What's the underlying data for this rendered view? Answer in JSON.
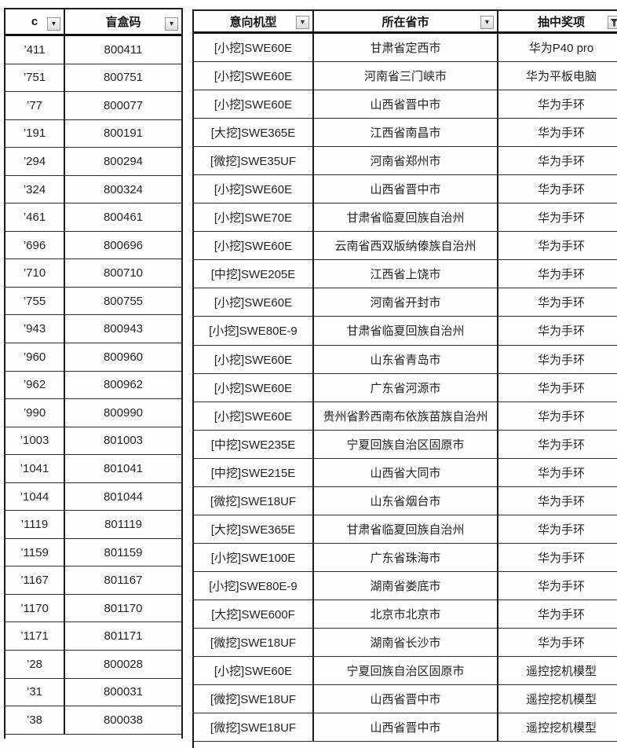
{
  "table": {
    "headers": [
      {
        "label": "c",
        "filter": "dropdown"
      },
      {
        "label": "盲盒码",
        "filter": "dropdown"
      },
      {
        "label": "意向机型",
        "filter": "dropdown"
      },
      {
        "label": "所在省市",
        "filter": "dropdown"
      },
      {
        "label": "抽中奖项",
        "filter": "funnel"
      }
    ],
    "rows": [
      [
        "’411",
        "800411",
        "[小挖]SWE60E",
        "甘肃省定西市",
        "华为P40 pro"
      ],
      [
        "’751",
        "800751",
        "[小挖]SWE60E",
        "河南省三门峡市",
        "华为平板电脑"
      ],
      [
        "’77",
        "800077",
        "[小挖]SWE60E",
        "山西省晋中市",
        "华为手环"
      ],
      [
        "’191",
        "800191",
        "[大挖]SWE365E",
        "江西省南昌市",
        "华为手环"
      ],
      [
        "’294",
        "800294",
        "[微挖]SWE35UF",
        "河南省郑州市",
        "华为手环"
      ],
      [
        "’324",
        "800324",
        "[小挖]SWE60E",
        "山西省晋中市",
        "华为手环"
      ],
      [
        "’461",
        "800461",
        "[小挖]SWE70E",
        "甘肃省临夏回族自治州",
        "华为手环"
      ],
      [
        "’696",
        "800696",
        "[小挖]SWE60E",
        "云南省西双版纳傣族自治州",
        "华为手环"
      ],
      [
        "’710",
        "800710",
        "[中挖]SWE205E",
        "江西省上饶市",
        "华为手环"
      ],
      [
        "’755",
        "800755",
        "[小挖]SWE60E",
        "河南省开封市",
        "华为手环"
      ],
      [
        "’943",
        "800943",
        "[小挖]SWE80E-9",
        "甘肃省临夏回族自治州",
        "华为手环"
      ],
      [
        "’960",
        "800960",
        "[小挖]SWE60E",
        "山东省青岛市",
        "华为手环"
      ],
      [
        "’962",
        "800962",
        "[小挖]SWE60E",
        "广东省河源市",
        "华为手环"
      ],
      [
        "’990",
        "800990",
        "[小挖]SWE60E",
        "贵州省黔西南布依族苗族自治州",
        "华为手环"
      ],
      [
        "’1003",
        "801003",
        "[中挖]SWE235E",
        "宁夏回族自治区固原市",
        "华为手环"
      ],
      [
        "’1041",
        "801041",
        "[中挖]SWE215E",
        "山西省大同市",
        "华为手环"
      ],
      [
        "’1044",
        "801044",
        "[微挖]SWE18UF",
        "山东省烟台市",
        "华为手环"
      ],
      [
        "’1119",
        "801119",
        "[大挖]SWE365E",
        "甘肃省临夏回族自治州",
        "华为手环"
      ],
      [
        "’1159",
        "801159",
        "[小挖]SWE100E",
        "广东省珠海市",
        "华为手环"
      ],
      [
        "’1167",
        "801167",
        "[小挖]SWE80E-9",
        "湖南省娄底市",
        "华为手环"
      ],
      [
        "’1170",
        "801170",
        "[大挖]SWE600F",
        "北京市北京市",
        "华为手环"
      ],
      [
        "’1171",
        "801171",
        "[微挖]SWE18UF",
        "湖南省长沙市",
        "华为手环"
      ],
      [
        "’28",
        "800028",
        "[小挖]SWE60E",
        "宁夏回族自治区固原市",
        "遥控挖机模型"
      ],
      [
        "’31",
        "800031",
        "[微挖]SWE18UF",
        "山西省晋中市",
        "遥控挖机模型"
      ],
      [
        "’38",
        "800038",
        "[微挖]SWE18UF",
        "山西省晋中市",
        "遥控挖机模型"
      ]
    ]
  },
  "icons": {
    "dropdown_glyph": "▼"
  },
  "colors": {
    "border": "#1c1c1c",
    "text": "#242424",
    "filter_button_bg": "#e4e4e4"
  }
}
